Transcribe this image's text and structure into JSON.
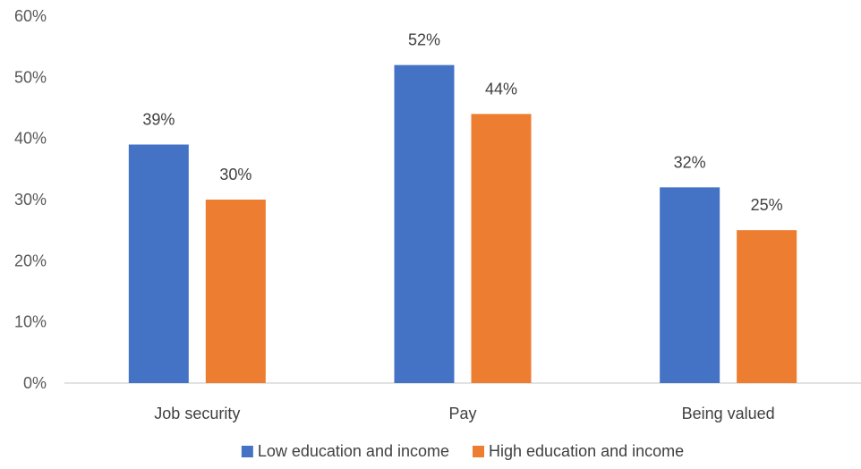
{
  "chart_data": {
    "type": "bar",
    "categories": [
      "Job security",
      "Pay",
      "Being valued"
    ],
    "series": [
      {
        "name": "Low education and income",
        "values": [
          39,
          52,
          32
        ],
        "labels": [
          "39%",
          "52%",
          "32%"
        ],
        "color": "#4472C4"
      },
      {
        "name": "High education and income",
        "values": [
          30,
          44,
          25
        ],
        "labels": [
          "30%",
          "44%",
          "25%"
        ],
        "color": "#ED7D31"
      }
    ],
    "ylim": [
      0,
      60
    ],
    "yticks": [
      0,
      10,
      20,
      30,
      40,
      50,
      60
    ],
    "ytick_labels": [
      "0%",
      "10%",
      "20%",
      "30%",
      "40%",
      "50%",
      "60%"
    ],
    "grid": false,
    "legend_position": "bottom",
    "axis_color": "#D9D9D9"
  }
}
